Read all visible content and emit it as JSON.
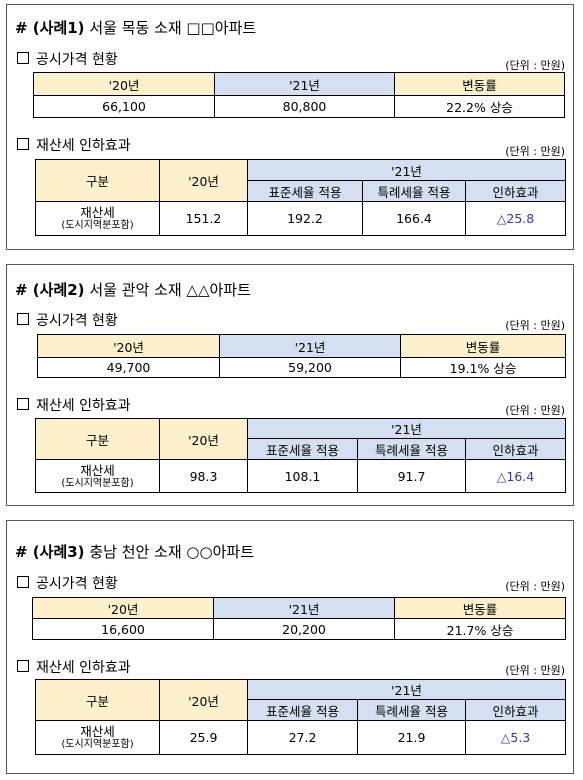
{
  "cases": [
    {
      "tag": "# (사례1)",
      "title": "서울 목동 소재 □□아파트",
      "price_section": "공시가격 현황",
      "unit": "(단위 : 만원)",
      "price_headers": [
        "'20년",
        "'21년",
        "변동률"
      ],
      "price_values": [
        "66,100",
        "80,800",
        "22.2% 상승"
      ],
      "tax_section": "재산세 인하효과",
      "tax_unit": "(단위 : 만원)",
      "tax_head_left": "구분",
      "tax_head_20": "'20년",
      "tax_head_21": "'21년",
      "tax_sub_headers": [
        "표준세율 적용",
        "특례세율 적용",
        "인하효과"
      ],
      "row_label": "재산세",
      "row_sublabel": "(도시지역분포함)",
      "tax_values": [
        "151.2",
        "192.2",
        "166.4",
        "△25.8"
      ]
    },
    {
      "tag": "# (사례2)",
      "title": "서울 관악 소재 △△아파트",
      "price_section": "공시가격 현황",
      "unit": "(단위 : 만원)",
      "price_headers": [
        "'20년",
        "'21년",
        "변동률"
      ],
      "price_values": [
        "49,700",
        "59,200",
        "19.1% 상승"
      ],
      "tax_section": "재산세 인하효과",
      "tax_unit": "(단위 : 만원)",
      "tax_head_left": "구분",
      "tax_head_20": "'20년",
      "tax_head_21": "'21년",
      "tax_sub_headers": [
        "표준세율 적용",
        "특례세율 적용",
        "인하효과"
      ],
      "row_label": "재산세",
      "row_sublabel": "(도시지역분포함)",
      "tax_values": [
        "98.3",
        "108.1",
        "91.7",
        "△16.4"
      ]
    },
    {
      "tag": "# (사례3)",
      "title": "충남 천안 소재 ○○아파트",
      "price_section": "공시가격 현황",
      "unit": "(단위 : 만원)",
      "price_headers": [
        "'20년",
        "'21년",
        "변동률"
      ],
      "price_values": [
        "16,600",
        "20,200",
        "21.7% 상승"
      ],
      "tax_section": "재산세 인하효과",
      "tax_unit": "(단위 : 만원)",
      "tax_head_left": "구분",
      "tax_head_20": "'20년",
      "tax_head_21": "'21년",
      "tax_sub_headers": [
        "표준세율 적용",
        "특례세율 적용",
        "인하효과"
      ],
      "row_label": "재산세",
      "row_sublabel": "(도시지역분포함)",
      "tax_values": [
        "25.9",
        "27.2",
        "21.9",
        "△5.3"
      ]
    }
  ]
}
